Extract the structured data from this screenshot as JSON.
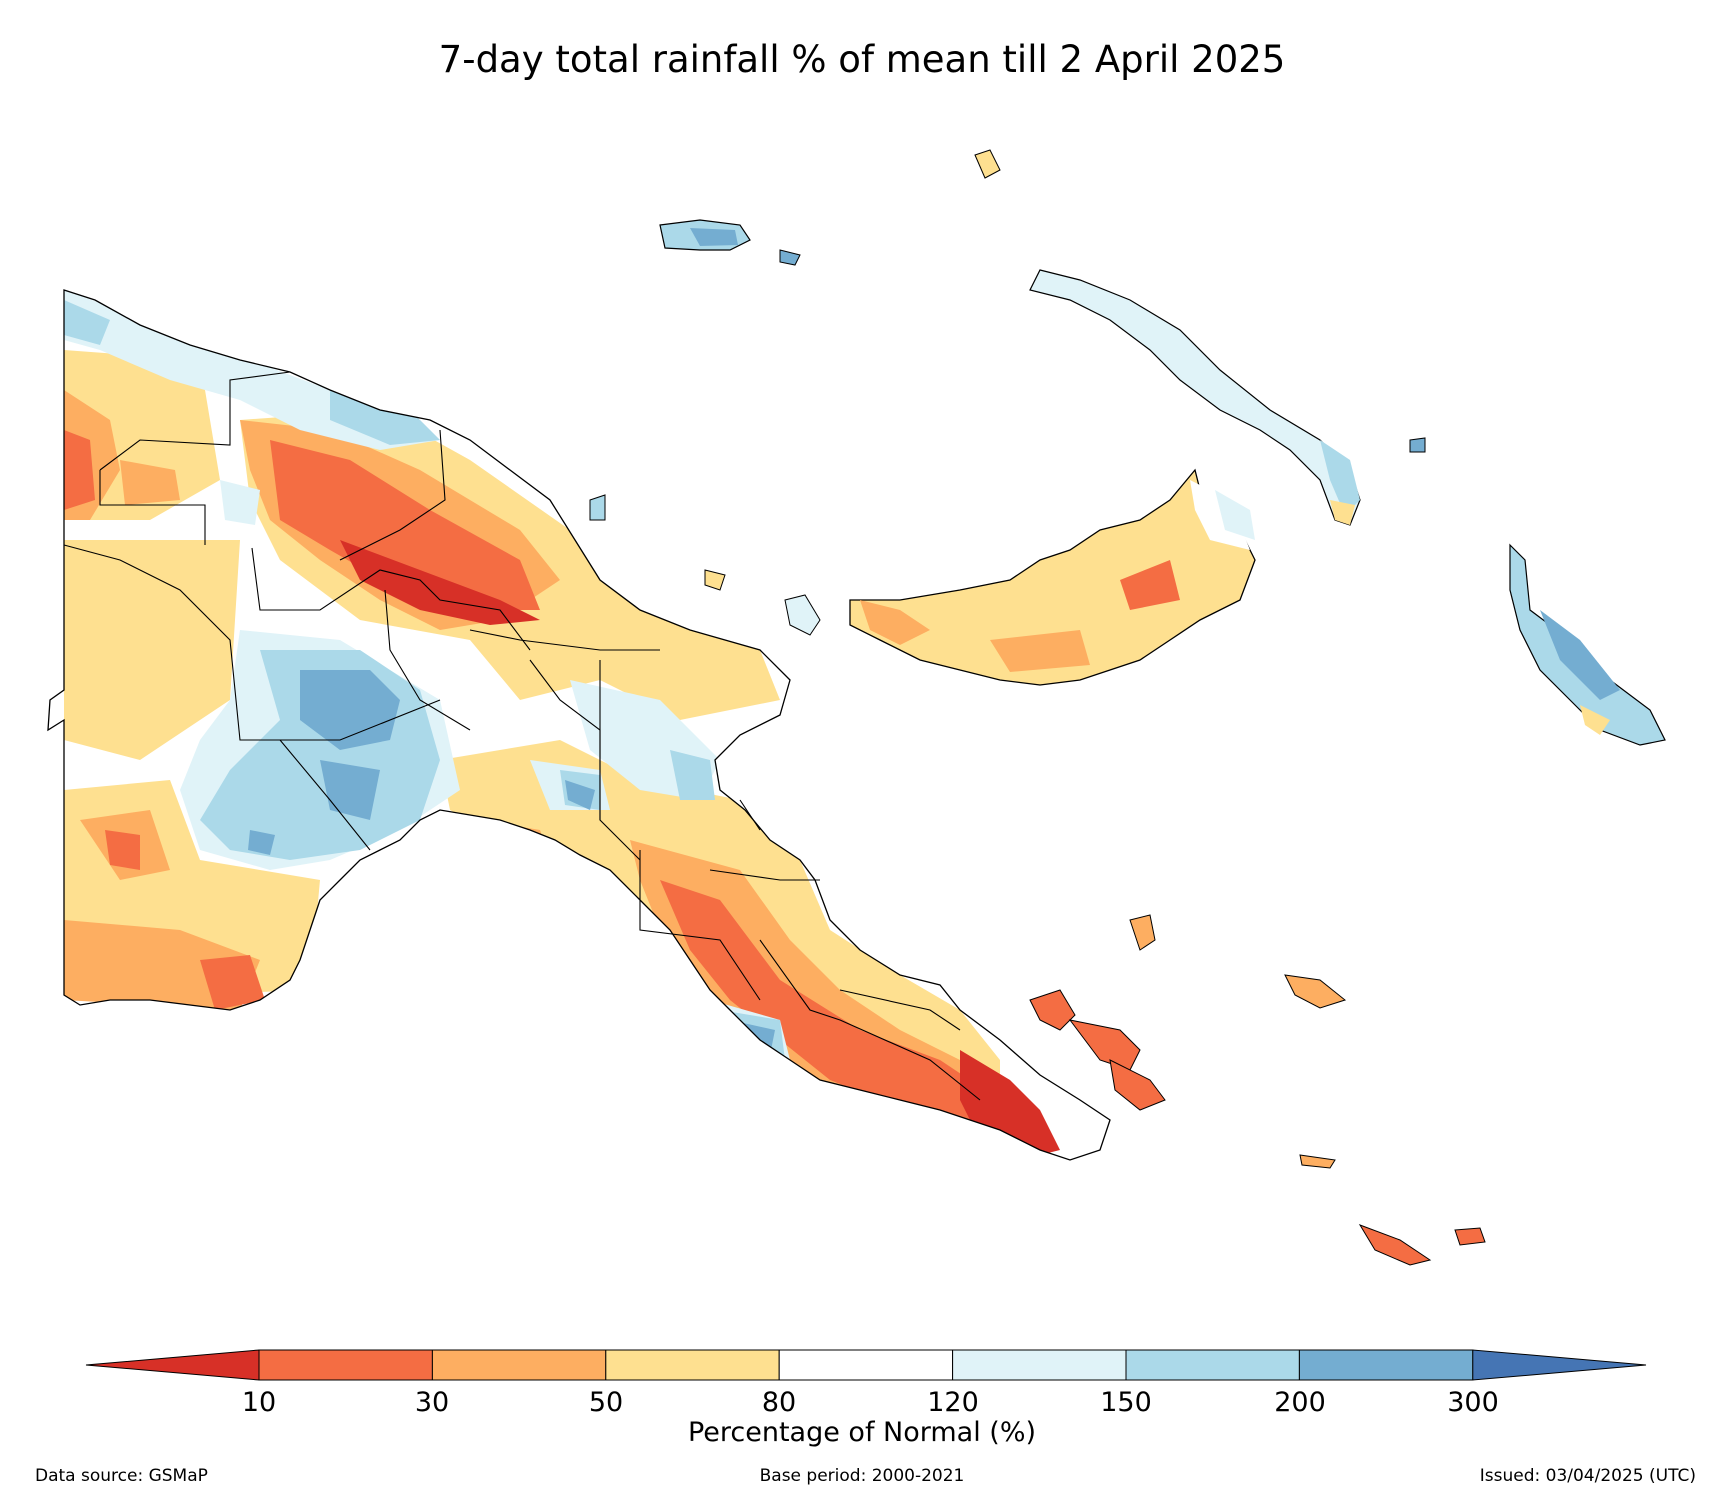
{
  "title": "7-day total rainfall % of mean till 2 April 2025",
  "colorbar": {
    "label": "Percentage of Normal (%)",
    "ticks": [
      "10",
      "30",
      "50",
      "80",
      "120",
      "150",
      "200",
      "300"
    ],
    "colors": [
      "#d73027",
      "#f46d43",
      "#fdae61",
      "#fee090",
      "#ffffff",
      "#e0f3f8",
      "#abd9e9",
      "#74add1",
      "#4575b4"
    ]
  },
  "footer": {
    "source": "Data source: GSMaP",
    "base_period": "Base period: 2000-2021",
    "issued": "Issued: 03/04/2025 (UTC)"
  }
}
